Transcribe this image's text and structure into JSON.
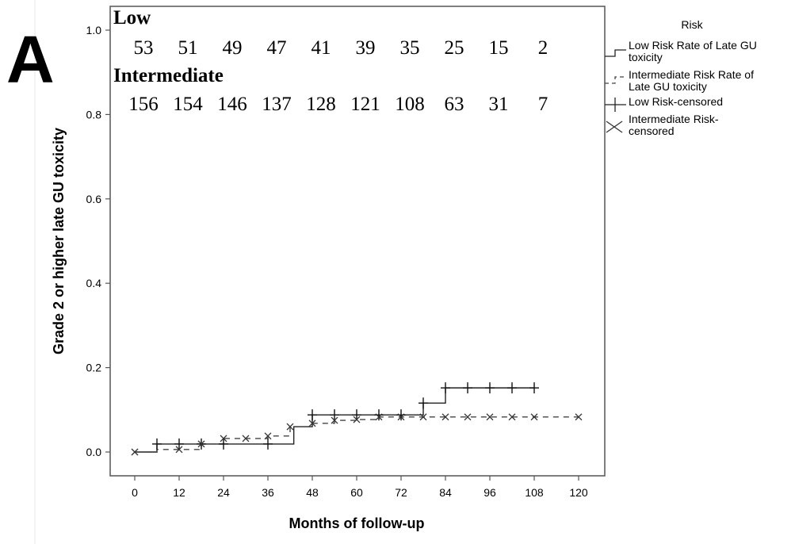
{
  "panel_letter": "A",
  "chart_data": {
    "type": "line",
    "subtype": "kaplan-meier step",
    "xlabel": "Months of follow-up",
    "ylabel": "Grade 2 or higher late GU toxicity",
    "xlim": [
      0,
      120
    ],
    "ylim": [
      0,
      1.0
    ],
    "x_ticks": [
      "0",
      "12",
      "24",
      "36",
      "48",
      "60",
      "72",
      "84",
      "96",
      "108",
      "120"
    ],
    "y_ticks": [
      "0.0",
      "0.2",
      "0.4",
      "0.6",
      "0.8",
      "1.0"
    ],
    "grid": false,
    "legend": {
      "title": "Risk",
      "placement": "right",
      "entries": [
        {
          "label": "Low Risk Rate of Late GU toxicity",
          "lines": [
            "Low Risk Rate of Late GU",
            "toxicity"
          ],
          "symbol": "solid-step"
        },
        {
          "label": "Intermediate Risk Rate of Late GU toxicity",
          "lines": [
            "Intermediate Risk Rate of",
            "Late GU toxicity"
          ],
          "symbol": "dashed-step"
        },
        {
          "label": "Low Risk-censored",
          "lines": [
            "Low Risk-censored"
          ],
          "symbol": "plus"
        },
        {
          "label": "Intermediate Risk-censored",
          "lines": [
            "Intermediate Risk-",
            "censored"
          ],
          "symbol": "x"
        }
      ]
    },
    "series": [
      {
        "name": "Low Risk Rate of Late GU toxicity",
        "line_style": "solid",
        "steps": [
          [
            0,
            0.0
          ],
          [
            6,
            0.019
          ],
          [
            43,
            0.06
          ],
          [
            48,
            0.088
          ],
          [
            78,
            0.116
          ],
          [
            84,
            0.152
          ],
          [
            108,
            0.152
          ]
        ],
        "censored": [
          6,
          12,
          18,
          24,
          36,
          48,
          54,
          60,
          66,
          72,
          78,
          84,
          90,
          96,
          102,
          108
        ],
        "censor_marker": "plus"
      },
      {
        "name": "Intermediate Risk Rate of Late GU toxicity",
        "line_style": "dashed",
        "steps": [
          [
            0,
            0.0
          ],
          [
            6,
            0.006
          ],
          [
            18,
            0.019
          ],
          [
            24,
            0.032
          ],
          [
            36,
            0.038
          ],
          [
            42,
            0.06
          ],
          [
            48,
            0.068
          ],
          [
            54,
            0.075
          ],
          [
            60,
            0.077
          ],
          [
            66,
            0.083
          ],
          [
            120,
            0.083
          ]
        ],
        "censored": [
          0,
          12,
          18,
          24,
          30,
          36,
          42,
          48,
          54,
          60,
          66,
          72,
          78,
          84,
          90,
          96,
          102,
          108,
          120
        ],
        "censor_marker": "x"
      }
    ],
    "risk_table": {
      "times": [
        0,
        12,
        24,
        36,
        48,
        60,
        72,
        84,
        96,
        108
      ],
      "groups": [
        {
          "name": "Low",
          "values": [
            "53",
            "51",
            "49",
            "47",
            "41",
            "39",
            "35",
            "25",
            "15",
            "2"
          ]
        },
        {
          "name": "Intermediate",
          "values": [
            "156",
            "154",
            "146",
            "137",
            "128",
            "121",
            "108",
            "63",
            "31",
            "7"
          ]
        }
      ]
    }
  }
}
